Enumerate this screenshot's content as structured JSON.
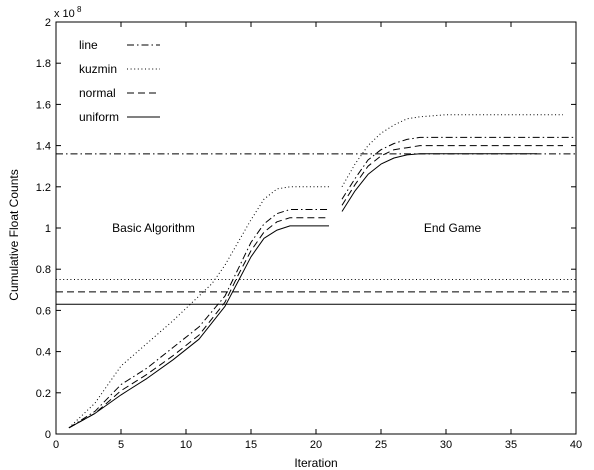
{
  "chart_data": {
    "type": "line",
    "xlabel": "Iteration",
    "ylabel": "Cumulative Float Counts",
    "y_multiplier_label": "x 10",
    "y_multiplier_exponent": "8",
    "xlim": [
      0,
      40
    ],
    "ylim": [
      0,
      2
    ],
    "xticks": [
      0,
      5,
      10,
      15,
      20,
      25,
      30,
      35,
      40
    ],
    "yticks": [
      0,
      0.2,
      0.4,
      0.6,
      0.8,
      1,
      1.2,
      1.4,
      1.6,
      1.8,
      2
    ],
    "grid": false,
    "legend_position": "top-left",
    "annotations": [
      {
        "text": "Basic Algorithm",
        "x": 7.5,
        "y": 1.0
      },
      {
        "text": "End Game",
        "x": 30.5,
        "y": 1.0
      }
    ],
    "series": [
      {
        "name": "line",
        "style": "dashdot",
        "curves": [
          [
            [
              1,
              0.03
            ],
            [
              3,
              0.11
            ],
            [
              5,
              0.24
            ],
            [
              7,
              0.32
            ],
            [
              9,
              0.42
            ],
            [
              11,
              0.52
            ],
            [
              13,
              0.67
            ],
            [
              14,
              0.8
            ],
            [
              15,
              0.93
            ],
            [
              16,
              1.02
            ],
            [
              17,
              1.07
            ],
            [
              18,
              1.09
            ],
            [
              21,
              1.09
            ]
          ],
          [
            [
              22,
              1.14
            ],
            [
              23,
              1.24
            ],
            [
              24,
              1.33
            ],
            [
              25,
              1.38
            ],
            [
              26,
              1.41
            ],
            [
              27,
              1.43
            ],
            [
              28,
              1.44
            ],
            [
              30,
              1.44
            ],
            [
              40,
              1.44
            ]
          ]
        ],
        "baseline": 1.36
      },
      {
        "name": "kuzmin",
        "style": "dotted",
        "curves": [
          [
            [
              1,
              0.03
            ],
            [
              3,
              0.15
            ],
            [
              5,
              0.33
            ],
            [
              7,
              0.44
            ],
            [
              9,
              0.55
            ],
            [
              11,
              0.67
            ],
            [
              12,
              0.73
            ],
            [
              13,
              0.82
            ],
            [
              14,
              0.93
            ],
            [
              15,
              1.04
            ],
            [
              16,
              1.14
            ],
            [
              17,
              1.19
            ],
            [
              18,
              1.2
            ],
            [
              21,
              1.2
            ]
          ],
          [
            [
              22,
              1.2
            ],
            [
              23,
              1.31
            ],
            [
              24,
              1.4
            ],
            [
              25,
              1.46
            ],
            [
              26,
              1.5
            ],
            [
              27,
              1.53
            ],
            [
              28,
              1.54
            ],
            [
              30,
              1.55
            ],
            [
              39,
              1.55
            ]
          ]
        ],
        "baseline": 0.75
      },
      {
        "name": "normal",
        "style": "dashed",
        "curves": [
          [
            [
              1,
              0.03
            ],
            [
              3,
              0.1
            ],
            [
              5,
              0.21
            ],
            [
              7,
              0.29
            ],
            [
              9,
              0.38
            ],
            [
              11,
              0.48
            ],
            [
              13,
              0.64
            ],
            [
              14,
              0.77
            ],
            [
              15,
              0.89
            ],
            [
              16,
              0.98
            ],
            [
              17,
              1.03
            ],
            [
              18,
              1.05
            ],
            [
              21,
              1.05
            ]
          ],
          [
            [
              22,
              1.11
            ],
            [
              23,
              1.21
            ],
            [
              24,
              1.3
            ],
            [
              25,
              1.35
            ],
            [
              26,
              1.38
            ],
            [
              27,
              1.39
            ],
            [
              28,
              1.4
            ],
            [
              30,
              1.4
            ],
            [
              39,
              1.4
            ]
          ]
        ],
        "baseline": 0.69
      },
      {
        "name": "uniform",
        "style": "solid",
        "curves": [
          [
            [
              1,
              0.03
            ],
            [
              3,
              0.1
            ],
            [
              5,
              0.19
            ],
            [
              7,
              0.27
            ],
            [
              9,
              0.36
            ],
            [
              11,
              0.46
            ],
            [
              13,
              0.62
            ],
            [
              14,
              0.74
            ],
            [
              15,
              0.86
            ],
            [
              16,
              0.95
            ],
            [
              17,
              0.99
            ],
            [
              18,
              1.01
            ],
            [
              21,
              1.01
            ]
          ],
          [
            [
              22,
              1.08
            ],
            [
              23,
              1.18
            ],
            [
              24,
              1.26
            ],
            [
              25,
              1.31
            ],
            [
              26,
              1.34
            ],
            [
              27,
              1.355
            ],
            [
              28,
              1.36
            ],
            [
              30,
              1.36
            ],
            [
              37,
              1.36
            ]
          ]
        ],
        "baseline": 0.63
      }
    ]
  }
}
